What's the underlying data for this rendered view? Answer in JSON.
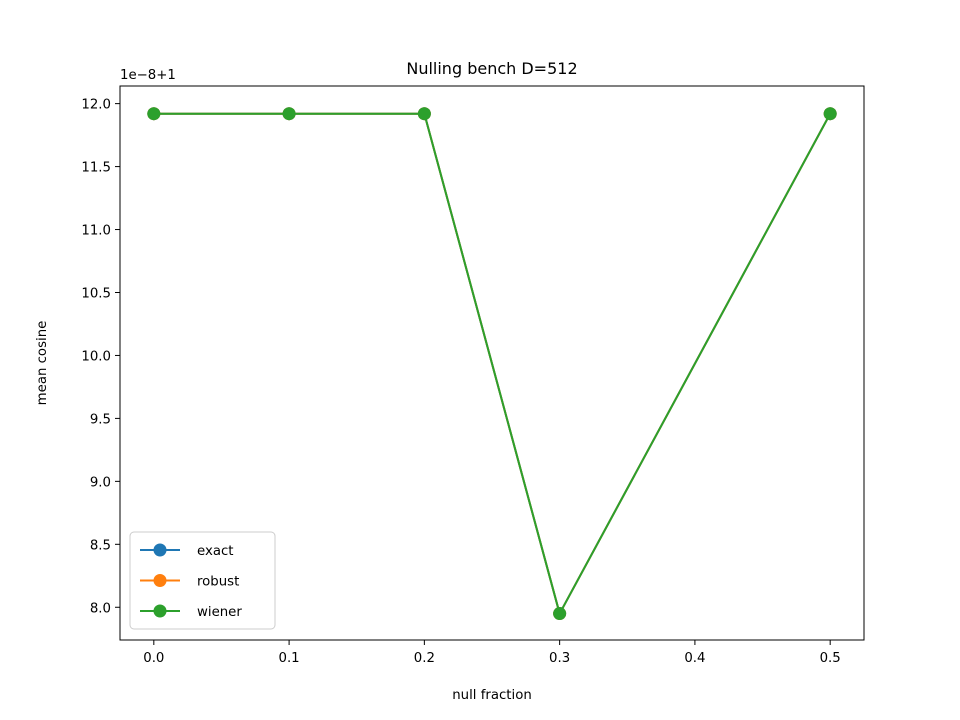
{
  "chart_data": {
    "type": "line",
    "title": "Nulling bench D=512",
    "xlabel": "null fraction",
    "ylabel": "mean cosine",
    "y_offset_label": "1e−8+1",
    "x": [
      0.0,
      0.1,
      0.2,
      0.3,
      0.5
    ],
    "xlim": [
      -0.025,
      0.525
    ],
    "ylim": [
      7.74,
      12.14
    ],
    "x_ticks": [
      0.0,
      0.1,
      0.2,
      0.3,
      0.4,
      0.5
    ],
    "x_tick_labels": [
      "0.0",
      "0.1",
      "0.2",
      "0.3",
      "0.4",
      "0.5"
    ],
    "y_ticks": [
      8.0,
      8.5,
      9.0,
      9.5,
      10.0,
      10.5,
      11.0,
      11.5,
      12.0
    ],
    "y_tick_labels": [
      "8.0",
      "8.5",
      "9.0",
      "9.5",
      "10.0",
      "10.5",
      "11.0",
      "11.5",
      "12.0"
    ],
    "grid": false,
    "legend_position": "lower-left",
    "series": [
      {
        "name": "exact",
        "color": "#1f77b4",
        "values": [
          11.92,
          11.92,
          11.92,
          7.95,
          11.92
        ]
      },
      {
        "name": "robust",
        "color": "#ff7f0e",
        "values": [
          11.92,
          11.92,
          11.92,
          7.95,
          11.92
        ]
      },
      {
        "name": "wiener",
        "color": "#2ca02c",
        "values": [
          11.92,
          11.92,
          11.92,
          7.95,
          11.92
        ]
      }
    ]
  }
}
